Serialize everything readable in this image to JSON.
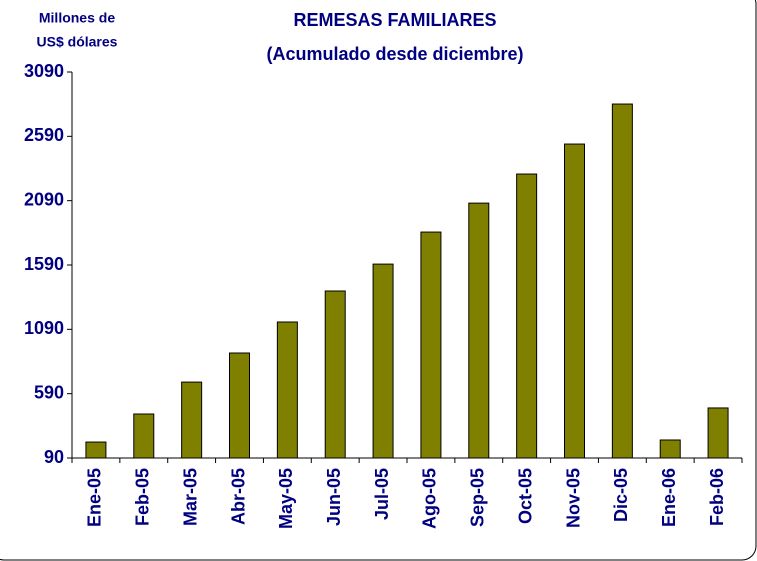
{
  "chart_data": {
    "type": "bar",
    "title": [
      "REMESAS FAMILIARES",
      "(Acumulado desde diciembre)"
    ],
    "y_label": [
      "Millones de",
      "US$ dólares"
    ],
    "categories": [
      "Ene-05",
      "Feb-05",
      "Mar-05",
      "Abr-05",
      "May-05",
      "Jun-05",
      "Jul-05",
      "Ago-05",
      "Sep-05",
      "Oct-05",
      "Nov-05",
      "Dic-05",
      "Ene-06",
      "Feb-06"
    ],
    "values": [
      214,
      432,
      680,
      906,
      1147,
      1388,
      1597,
      1846,
      2071,
      2297,
      2530,
      2841,
      230,
      479
    ],
    "color": "#808000",
    "ylim": [
      90,
      3090
    ],
    "yticks": [
      90,
      590,
      1090,
      1590,
      2090,
      2590,
      3090
    ],
    "grid": false
  }
}
